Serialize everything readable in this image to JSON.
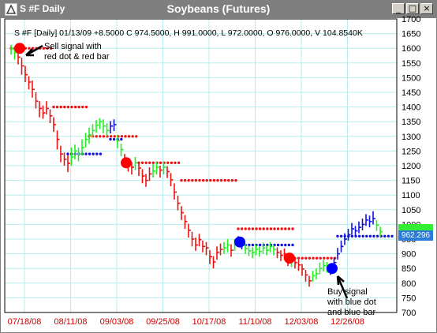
{
  "window": {
    "title": "S #F Daily",
    "chart_title": "Soybeans (Futures)",
    "buttons": {
      "minimize": "_",
      "maximize": "□",
      "close": "×"
    }
  },
  "info_line": "S #F [Daily] 01/13/09  +8.5000 C 974.5000, H 991.0000, L 972.0000, O 976.0000, V 104.8540K",
  "annotations": {
    "sell_line1": "Sell signal with",
    "sell_line2": "red dot & red bar",
    "buy_line1": "Buy signal",
    "buy_line2": "with blue dot",
    "buy_line3": "and blue bar"
  },
  "price_tag": "962.296",
  "colors": {
    "up": "#22ee22",
    "down": "#ee1111",
    "buy": "#1111dd",
    "grid": "#b8ecec",
    "tag": "#2b7bd9"
  },
  "chart_data": {
    "type": "bar",
    "title": "Soybeans (Futures)",
    "x_ticks": [
      "07/18/08",
      "08/11/08",
      "09/03/08",
      "09/25/08",
      "10/17/08",
      "11/10/08",
      "12/03/08",
      "12/26/08"
    ],
    "y_ticks": [
      700,
      750,
      800,
      850,
      900,
      950,
      1000,
      1050,
      1100,
      1150,
      1200,
      1250,
      1300,
      1350,
      1400,
      1450,
      1500,
      1550,
      1600,
      1650,
      1700
    ],
    "ylim": [
      700,
      1700
    ],
    "grid": true,
    "signals": [
      {
        "type": "sell",
        "date": "07/18/08",
        "price": 1600,
        "color": "red"
      },
      {
        "type": "sell",
        "date": "09/03/08",
        "price": 1210,
        "color": "red"
      },
      {
        "type": "buy",
        "date": "11/10/08",
        "price": 940,
        "color": "blue"
      },
      {
        "type": "sell",
        "date": "11/17/08",
        "price": 885,
        "color": "red"
      },
      {
        "type": "buy",
        "date": "12/22/08",
        "price": 850,
        "color": "blue"
      }
    ],
    "last_value": 962.296,
    "bars": [
      [
        1598,
        1578,
        1612,
        "g"
      ],
      [
        1585,
        1562,
        1605,
        "g"
      ],
      [
        1570,
        1545,
        1595,
        "r"
      ],
      [
        1540,
        1510,
        1568,
        "r"
      ],
      [
        1510,
        1485,
        1540,
        "r"
      ],
      [
        1485,
        1460,
        1505,
        "r"
      ],
      [
        1460,
        1432,
        1490,
        "r"
      ],
      [
        1420,
        1395,
        1450,
        "r"
      ],
      [
        1395,
        1365,
        1420,
        "r"
      ],
      [
        1380,
        1360,
        1405,
        "r"
      ],
      [
        1395,
        1375,
        1420,
        "r"
      ],
      [
        1370,
        1345,
        1392,
        "r"
      ],
      [
        1340,
        1315,
        1365,
        "r"
      ],
      [
        1290,
        1255,
        1320,
        "r"
      ],
      [
        1240,
        1212,
        1268,
        "r"
      ],
      [
        1222,
        1200,
        1245,
        "r"
      ],
      [
        1208,
        1178,
        1235,
        "r"
      ],
      [
        1230,
        1200,
        1262,
        "g"
      ],
      [
        1250,
        1222,
        1272,
        "g"
      ],
      [
        1240,
        1215,
        1262,
        "g"
      ],
      [
        1262,
        1235,
        1290,
        "g"
      ],
      [
        1290,
        1262,
        1312,
        "g"
      ],
      [
        1305,
        1275,
        1330,
        "g"
      ],
      [
        1320,
        1295,
        1342,
        "g"
      ],
      [
        1338,
        1312,
        1355,
        "g"
      ],
      [
        1350,
        1325,
        1362,
        "g"
      ],
      [
        1335,
        1310,
        1358,
        "g"
      ],
      [
        1320,
        1300,
        1345,
        "g"
      ],
      [
        1335,
        1310,
        1352,
        "b"
      ],
      [
        1340,
        1318,
        1358,
        "b"
      ],
      [
        1285,
        1260,
        1305,
        "g"
      ],
      [
        1255,
        1232,
        1275,
        "g"
      ],
      [
        1220,
        1195,
        1240,
        "r"
      ],
      [
        1205,
        1180,
        1225,
        "r"
      ],
      [
        1195,
        1170,
        1212,
        "r"
      ],
      [
        1210,
        1185,
        1230,
        "g"
      ],
      [
        1192,
        1165,
        1212,
        "r"
      ],
      [
        1165,
        1140,
        1188,
        "r"
      ],
      [
        1150,
        1128,
        1172,
        "r"
      ],
      [
        1172,
        1148,
        1195,
        "r"
      ],
      [
        1182,
        1160,
        1205,
        "g"
      ],
      [
        1195,
        1170,
        1212,
        "g"
      ],
      [
        1185,
        1160,
        1200,
        "r"
      ],
      [
        1195,
        1170,
        1212,
        "g"
      ],
      [
        1180,
        1158,
        1198,
        "r"
      ],
      [
        1152,
        1130,
        1175,
        "r"
      ],
      [
        1110,
        1085,
        1140,
        "r"
      ],
      [
        1072,
        1048,
        1098,
        "r"
      ],
      [
        1040,
        1015,
        1062,
        "r"
      ],
      [
        1010,
        985,
        1032,
        "r"
      ],
      [
        980,
        955,
        1002,
        "r"
      ],
      [
        950,
        925,
        975,
        "r"
      ],
      [
        930,
        910,
        955,
        "r"
      ],
      [
        948,
        925,
        968,
        "r"
      ],
      [
        925,
        905,
        945,
        "r"
      ],
      [
        920,
        895,
        940,
        "r"
      ],
      [
        890,
        865,
        912,
        "r"
      ],
      [
        872,
        850,
        892,
        "r"
      ],
      [
        905,
        880,
        925,
        "r"
      ],
      [
        915,
        895,
        935,
        "r"
      ],
      [
        920,
        900,
        940,
        "g"
      ],
      [
        930,
        905,
        950,
        "g"
      ],
      [
        912,
        890,
        932,
        "r"
      ],
      [
        935,
        910,
        950,
        "g"
      ],
      [
        945,
        925,
        960,
        "b"
      ],
      [
        935,
        915,
        955,
        "b"
      ],
      [
        918,
        900,
        935,
        "g"
      ],
      [
        910,
        892,
        928,
        "g"
      ],
      [
        905,
        885,
        922,
        "g"
      ],
      [
        915,
        895,
        932,
        "g"
      ],
      [
        908,
        890,
        925,
        "g"
      ],
      [
        920,
        900,
        938,
        "g"
      ],
      [
        912,
        895,
        930,
        "g"
      ],
      [
        925,
        905,
        940,
        "g"
      ],
      [
        915,
        895,
        930,
        "g"
      ],
      [
        905,
        885,
        922,
        "r"
      ],
      [
        895,
        875,
        912,
        "r"
      ],
      [
        900,
        880,
        918,
        "r"
      ],
      [
        880,
        858,
        898,
        "r"
      ],
      [
        875,
        855,
        892,
        "g"
      ],
      [
        870,
        850,
        888,
        "r"
      ],
      [
        862,
        842,
        880,
        "r"
      ],
      [
        848,
        825,
        865,
        "r"
      ],
      [
        828,
        805,
        845,
        "r"
      ],
      [
        808,
        788,
        825,
        "r"
      ],
      [
        825,
        805,
        842,
        "g"
      ],
      [
        832,
        812,
        850,
        "g"
      ],
      [
        850,
        830,
        870,
        "g"
      ],
      [
        860,
        840,
        878,
        "g"
      ],
      [
        855,
        835,
        872,
        "g"
      ],
      [
        845,
        828,
        865,
        "b"
      ],
      [
        870,
        850,
        888,
        "b"
      ],
      [
        900,
        880,
        920,
        "b"
      ],
      [
        925,
        905,
        945,
        "b"
      ],
      [
        950,
        930,
        970,
        "b"
      ],
      [
        965,
        945,
        985,
        "b"
      ],
      [
        985,
        965,
        1005,
        "b"
      ],
      [
        978,
        960,
        995,
        "b"
      ],
      [
        990,
        970,
        1010,
        "b"
      ],
      [
        1000,
        980,
        1020,
        "b"
      ],
      [
        1015,
        995,
        1035,
        "b"
      ],
      [
        1010,
        990,
        1030,
        "b"
      ],
      [
        1020,
        1000,
        1045,
        "b"
      ],
      [
        998,
        978,
        1015,
        "g"
      ],
      [
        975,
        958,
        992,
        "g"
      ]
    ],
    "sell_line_segments": [
      [
        0,
        12,
        1600
      ],
      [
        12,
        22,
        1400
      ],
      [
        22,
        36,
        1300
      ],
      [
        36,
        48,
        1210
      ],
      [
        48,
        64,
        1150
      ],
      [
        64,
        80,
        985
      ],
      [
        80,
        92,
        885
      ]
    ],
    "buy_line_segments": [
      [
        16,
        26,
        1240
      ],
      [
        28,
        32,
        1290
      ],
      [
        64,
        80,
        930
      ],
      [
        92,
        108,
        960
      ]
    ]
  }
}
